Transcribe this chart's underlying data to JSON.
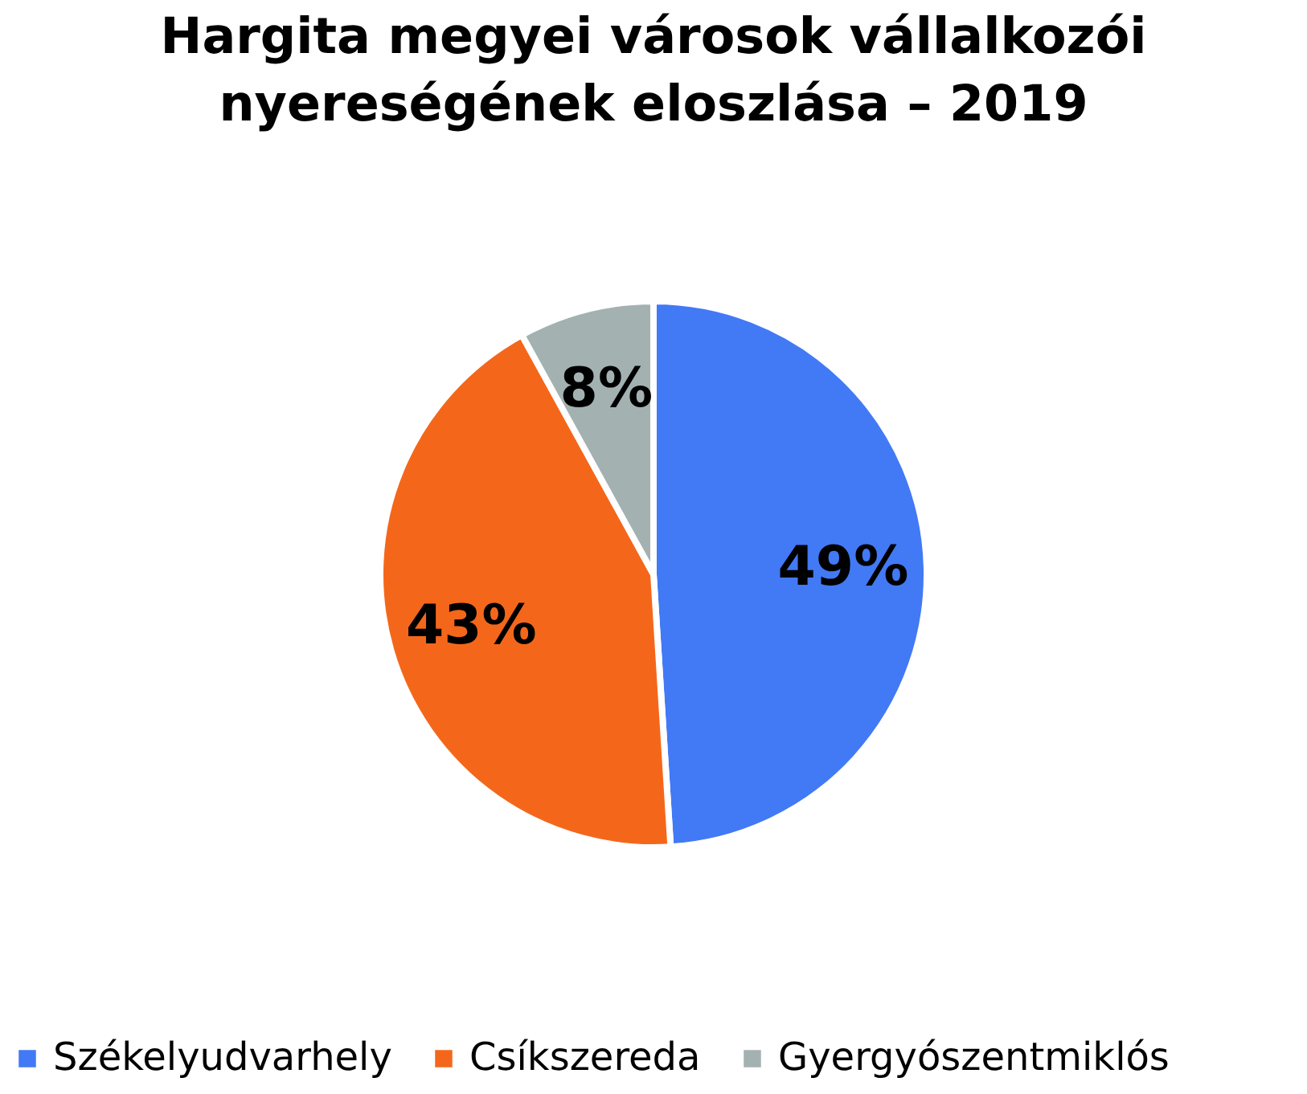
{
  "chart_data": {
    "type": "pie",
    "title": [
      "Hargita megyei városok vállalkozói",
      "nyereségének eloszlása – 2019"
    ],
    "categories": [
      "Székelyudvarhely",
      "Csíkszereda",
      "Gyergyószentmiklós"
    ],
    "values": [
      49,
      43,
      8
    ],
    "colors": [
      "#4279f5",
      "#f4671a",
      "#a3b1b1"
    ],
    "value_labels": [
      "49%",
      "43%",
      "8%"
    ],
    "legend": "bottom"
  }
}
